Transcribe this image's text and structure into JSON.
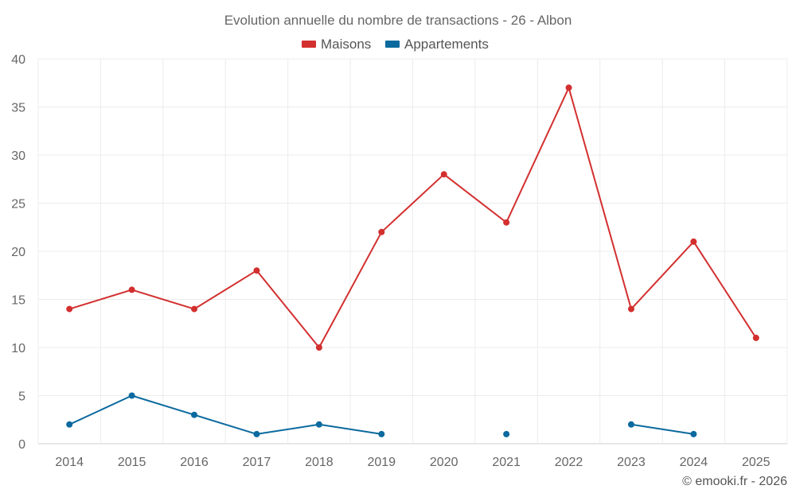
{
  "chart_data": {
    "type": "line",
    "title": "Evolution annuelle du nombre de transactions - 26 - Albon",
    "xlabel": "",
    "ylabel": "",
    "categories": [
      "2014",
      "2015",
      "2016",
      "2017",
      "2018",
      "2019",
      "2020",
      "2021",
      "2022",
      "2023",
      "2024",
      "2025"
    ],
    "ylim": [
      0,
      40
    ],
    "yticks": [
      0,
      5,
      10,
      15,
      20,
      25,
      30,
      35,
      40
    ],
    "grid": true,
    "legend_position": "top-center",
    "series": [
      {
        "name": "Maisons",
        "color": "#d32f2f",
        "values": [
          14,
          16,
          14,
          18,
          10,
          22,
          28,
          23,
          37,
          14,
          21,
          11
        ]
      },
      {
        "name": "Appartements",
        "color": "#0b6a9f",
        "values": [
          2,
          5,
          3,
          1,
          2,
          1,
          null,
          1,
          null,
          2,
          1,
          null
        ]
      }
    ]
  },
  "footer": {
    "credit": "© emooki.fr - 2026"
  }
}
